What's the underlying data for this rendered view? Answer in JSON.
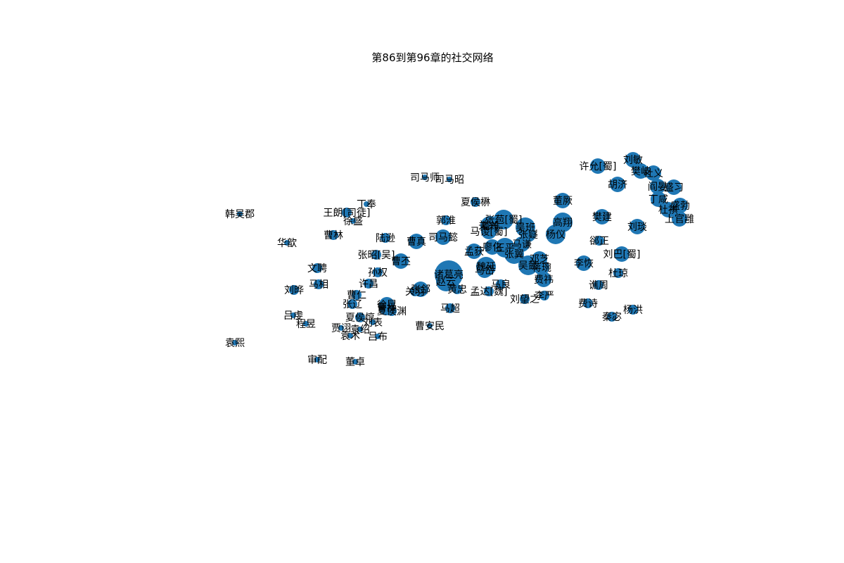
{
  "title": "第86到第96章的社交网络",
  "node_color": "#1f77b4",
  "nodes": [
    {
      "label": "韩吴郡",
      "size": 1
    },
    {
      "label": "袁熙",
      "size": 1
    },
    {
      "label": "华歆",
      "size": 1
    },
    {
      "label": "王朗[司徒]",
      "size": 2
    },
    {
      "label": "丁奉",
      "size": 1
    },
    {
      "label": "徐盛",
      "size": 1
    },
    {
      "label": "曹林",
      "size": 2
    },
    {
      "label": "文聘",
      "size": 2
    },
    {
      "label": "马相",
      "size": 2
    },
    {
      "label": "刘晔",
      "size": 2
    },
    {
      "label": "吕虔",
      "size": 1
    },
    {
      "label": "程昱",
      "size": 1
    },
    {
      "label": "审配",
      "size": 1
    },
    {
      "label": "董卓",
      "size": 1
    },
    {
      "label": "贾诩",
      "size": 1
    },
    {
      "label": "袁术",
      "size": 1
    },
    {
      "label": "袁绍",
      "size": 1
    },
    {
      "label": "吕布",
      "size": 1
    },
    {
      "label": "夏侯惇",
      "size": 2
    },
    {
      "label": "刘表",
      "size": 1
    },
    {
      "label": "张辽",
      "size": 2
    },
    {
      "label": "曹仁",
      "size": 2
    },
    {
      "label": "许昌",
      "size": 2
    },
    {
      "label": "孙权",
      "size": 2
    },
    {
      "label": "张昭[吴]",
      "size": 2
    },
    {
      "label": "陆逊",
      "size": 2
    },
    {
      "label": "曹丕",
      "size": 3
    },
    {
      "label": "曹真",
      "size": 3
    },
    {
      "label": "徐晃",
      "size": 3
    },
    {
      "label": "夏侯渊",
      "size": 2
    },
    {
      "label": "曹操",
      "size": 3
    },
    {
      "label": "关羽",
      "size": 2
    },
    {
      "label": "张郃",
      "size": 3
    },
    {
      "label": "曹安民",
      "size": 1
    },
    {
      "label": "司马师",
      "size": 1
    },
    {
      "label": "司马昭",
      "size": 1
    },
    {
      "label": "夏侯楙",
      "size": 2
    },
    {
      "label": "郭淮",
      "size": 2
    },
    {
      "label": "司马懿",
      "size": 3
    },
    {
      "label": "诸葛亮",
      "size": 6
    },
    {
      "label": "赵云",
      "size": 4
    },
    {
      "label": "黄忠",
      "size": 2
    },
    {
      "label": "孟达[魏]",
      "size": 2
    },
    {
      "label": "马超",
      "size": 2
    },
    {
      "label": "孟获",
      "size": 3
    },
    {
      "label": "魏延",
      "size": 4
    },
    {
      "label": "马岱",
      "size": 3
    },
    {
      "label": "关兴",
      "size": 3
    },
    {
      "label": "张苞[蜀]",
      "size": 4
    },
    {
      "label": "姜维",
      "size": 4
    },
    {
      "label": "马谡[蜀]",
      "size": 3
    },
    {
      "label": "王平",
      "size": 4
    },
    {
      "label": "张翼",
      "size": 4
    },
    {
      "label": "马良",
      "size": 2
    },
    {
      "label": "廖化",
      "size": 3
    },
    {
      "label": "吴懿",
      "size": 4
    },
    {
      "label": "吴班",
      "size": 4
    },
    {
      "label": "蒋琬",
      "size": 3
    },
    {
      "label": "邓芝",
      "size": 3
    },
    {
      "label": "马谦",
      "size": 3
    },
    {
      "label": "张嶷",
      "size": 3
    },
    {
      "label": "杨仪",
      "size": 4
    },
    {
      "label": "高翔",
      "size": 4
    },
    {
      "label": "董厥",
      "size": 3
    },
    {
      "label": "费祎",
      "size": 3
    },
    {
      "label": "刘望之",
      "size": 2
    },
    {
      "label": "李严",
      "size": 2
    },
    {
      "label": "李恢",
      "size": 3
    },
    {
      "label": "谯周",
      "size": 2
    },
    {
      "label": "费诗",
      "size": 2
    },
    {
      "label": "秦宓",
      "size": 2
    },
    {
      "label": "杨洪",
      "size": 2
    },
    {
      "label": "杜琼",
      "size": 2
    },
    {
      "label": "郤正",
      "size": 2
    },
    {
      "label": "刘巴[蜀]",
      "size": 3
    },
    {
      "label": "樊建",
      "size": 3
    },
    {
      "label": "刘琰",
      "size": 3
    },
    {
      "label": "胡济",
      "size": 3
    },
    {
      "label": "许允[蜀]",
      "size": 3
    },
    {
      "label": "刘敏",
      "size": 3
    },
    {
      "label": "樊岐",
      "size": 3
    },
    {
      "label": "杜义",
      "size": 3
    },
    {
      "label": "阎晏",
      "size": 3
    },
    {
      "label": "盛习",
      "size": 3
    },
    {
      "label": "丁咸",
      "size": 3
    },
    {
      "label": "杜祺",
      "size": 3
    },
    {
      "label": "盛勃",
      "size": 3
    },
    {
      "label": "上官雝",
      "size": 3
    }
  ]
}
